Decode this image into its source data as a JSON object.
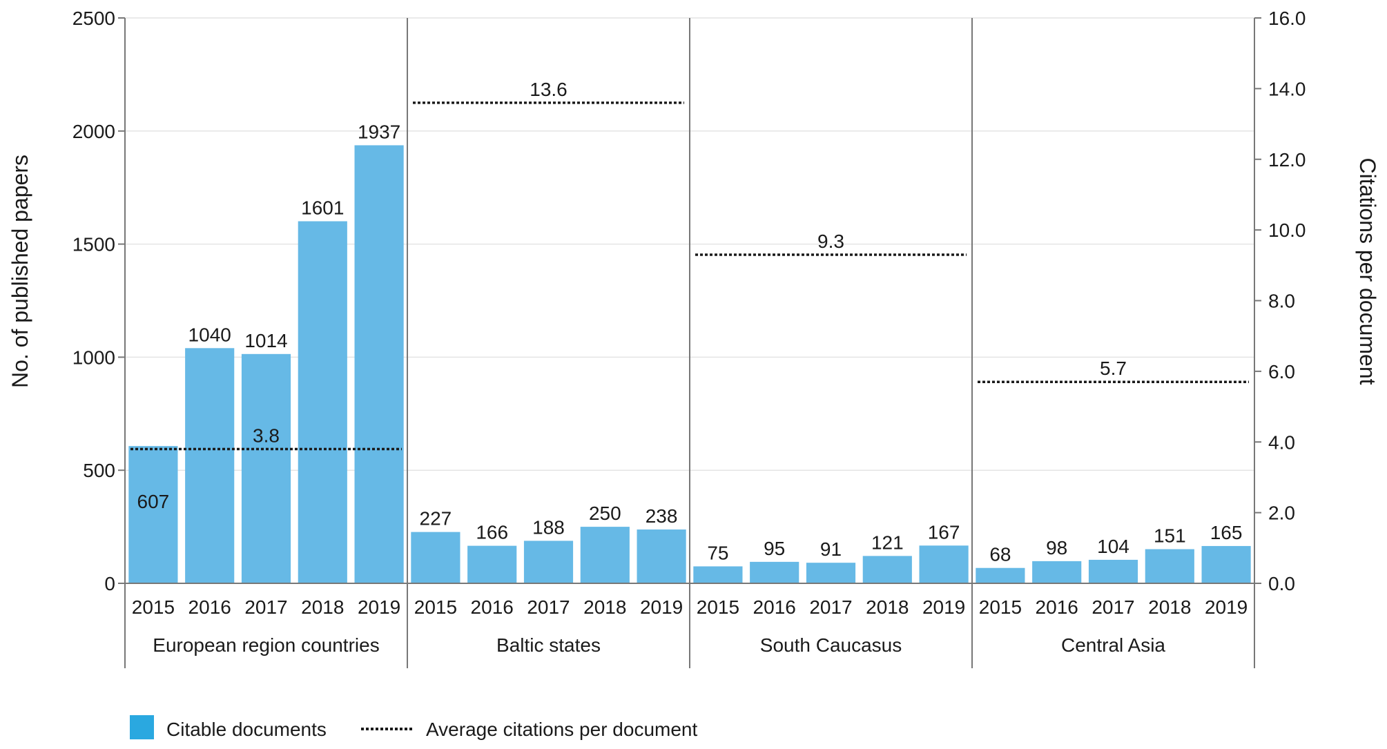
{
  "chart_data": {
    "type": "bar",
    "groups": [
      {
        "name": "European region countries",
        "years": [
          "2015",
          "2016",
          "2017",
          "2018",
          "2019"
        ],
        "values": [
          607,
          1040,
          1014,
          1601,
          1937
        ],
        "avg_citations": 3.8
      },
      {
        "name": "Baltic states",
        "years": [
          "2015",
          "2016",
          "2017",
          "2018",
          "2019"
        ],
        "values": [
          227,
          166,
          188,
          250,
          238
        ],
        "avg_citations": 13.6
      },
      {
        "name": "South Caucasus",
        "years": [
          "2015",
          "2016",
          "2017",
          "2018",
          "2019"
        ],
        "values": [
          75,
          95,
          91,
          121,
          167
        ],
        "avg_citations": 9.3
      },
      {
        "name": "Central Asia",
        "years": [
          "2015",
          "2016",
          "2017",
          "2018",
          "2019"
        ],
        "values": [
          68,
          98,
          104,
          151,
          165
        ],
        "avg_citations": 5.7
      }
    ],
    "ylabel": "No. of published papers",
    "y2label": "Citations per document",
    "ylim": [
      0,
      2500
    ],
    "y2lim": [
      0,
      16
    ],
    "yticks": [
      "0",
      "500",
      "1000",
      "1500",
      "2000",
      "2500"
    ],
    "y2ticks": [
      "0.0",
      "2.0",
      "4.0",
      "6.0",
      "8.0",
      "10.0",
      "12.0",
      "14.0",
      "16.0"
    ],
    "grid": true,
    "legend_position": "bottom-left",
    "legend": [
      {
        "name": "Citable documents",
        "kind": "bar"
      },
      {
        "name": "Average citations per document",
        "kind": "dotted-line"
      }
    ],
    "colors": {
      "bar": "#66b9e6",
      "legend_bar": "#2aa8e0",
      "avg_line": "#1a1a1a"
    }
  }
}
